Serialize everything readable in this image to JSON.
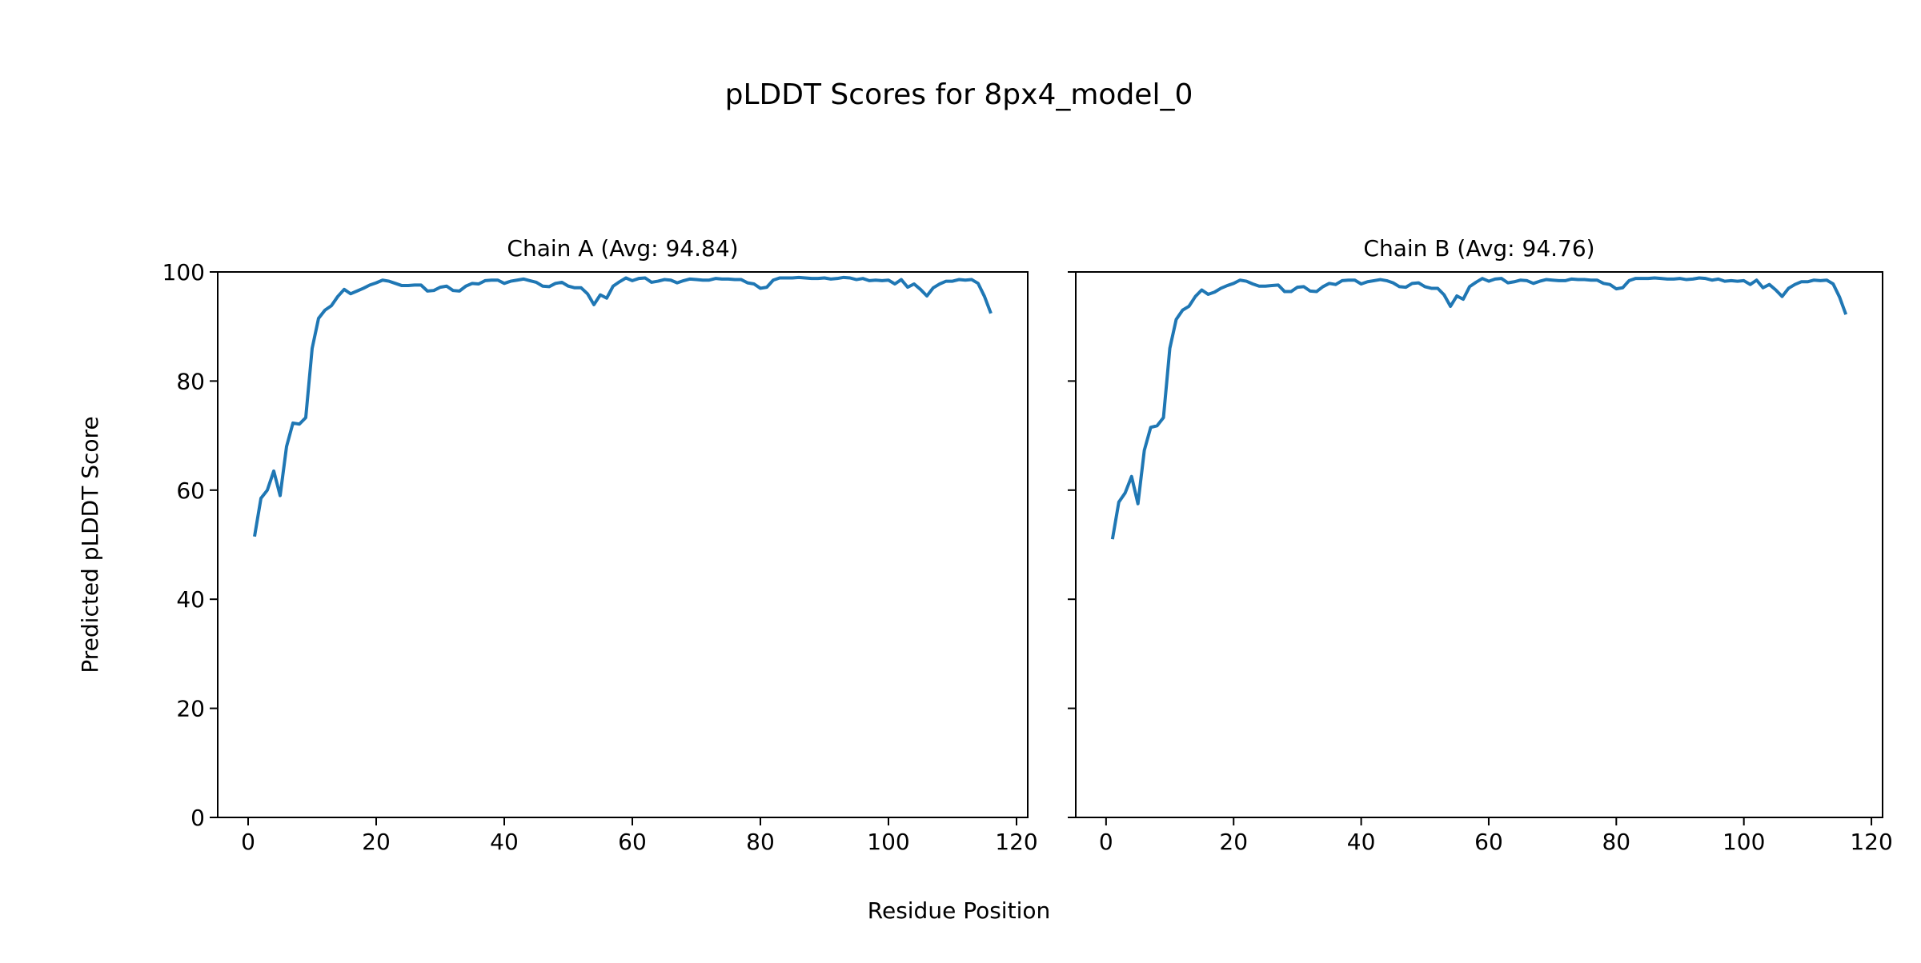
{
  "figure": {
    "title": "pLDDT Scores for 8px4_model_0",
    "xlabel": "Residue Position",
    "ylabel": "Predicted pLDDT Score"
  },
  "colors": {
    "line": "#1f77b4"
  },
  "chart_data": [
    {
      "type": "line",
      "title": "Chain A (Avg: 94.84)",
      "xlim": [
        -4.75,
        121.75
      ],
      "ylim": [
        0,
        100
      ],
      "xticks": [
        0,
        20,
        40,
        60,
        80,
        100,
        120
      ],
      "yticks": [
        0,
        20,
        40,
        60,
        80,
        100
      ],
      "show_ytick_labels": true,
      "grid": false,
      "x_start": 1,
      "values": [
        51.5,
        58.5,
        60,
        63.5,
        59,
        68,
        72.3,
        72.1,
        73.3,
        86,
        91.5,
        93,
        93.8,
        95.5,
        96.8,
        96,
        96.5,
        97,
        97.6,
        98,
        98.5,
        98.3,
        97.9,
        97.5,
        97.5,
        97.6,
        97.6,
        96.5,
        96.6,
        97.2,
        97.4,
        96.6,
        96.5,
        97.4,
        97.9,
        97.8,
        98.4,
        98.5,
        98.5,
        97.9,
        98.3,
        98.5,
        98.7,
        98.4,
        98.1,
        97.4,
        97.3,
        97.9,
        98.1,
        97.4,
        97.1,
        97.1,
        96,
        94,
        95.8,
        95.2,
        97.4,
        98.2,
        98.9,
        98.4,
        98.8,
        98.9,
        98.1,
        98.3,
        98.6,
        98.5,
        98,
        98.4,
        98.7,
        98.6,
        98.5,
        98.5,
        98.8,
        98.7,
        98.7,
        98.6,
        98.6,
        98,
        97.8,
        97,
        97.2,
        98.5,
        98.9,
        98.9,
        98.9,
        99,
        98.9,
        98.8,
        98.8,
        98.9,
        98.7,
        98.8,
        99,
        98.9,
        98.6,
        98.8,
        98.4,
        98.5,
        98.4,
        98.5,
        97.8,
        98.6,
        97.2,
        97.8,
        96.8,
        95.6,
        97.1,
        97.8,
        98.3,
        98.3,
        98.6,
        98.5,
        98.6,
        97.9,
        95.5,
        92.4
      ]
    },
    {
      "type": "line",
      "title": "Chain B (Avg: 94.76)",
      "xlim": [
        -4.75,
        121.75
      ],
      "ylim": [
        0,
        100
      ],
      "xticks": [
        0,
        20,
        40,
        60,
        80,
        100,
        120
      ],
      "yticks": [
        0,
        20,
        40,
        60,
        80,
        100
      ],
      "show_ytick_labels": false,
      "grid": false,
      "x_start": 1,
      "values": [
        51,
        57.8,
        59.5,
        62.5,
        57.5,
        67.3,
        71.5,
        71.8,
        73.3,
        86,
        91.3,
        93,
        93.7,
        95.5,
        96.7,
        95.9,
        96.3,
        97,
        97.5,
        97.9,
        98.5,
        98.3,
        97.8,
        97.4,
        97.4,
        97.5,
        97.6,
        96.4,
        96.4,
        97.2,
        97.3,
        96.5,
        96.4,
        97.3,
        97.9,
        97.7,
        98.4,
        98.5,
        98.5,
        97.8,
        98.2,
        98.4,
        98.6,
        98.4,
        98,
        97.3,
        97.2,
        97.9,
        98,
        97.3,
        97,
        97,
        95.8,
        93.7,
        95.6,
        95,
        97.3,
        98.1,
        98.8,
        98.3,
        98.7,
        98.8,
        98,
        98.2,
        98.5,
        98.4,
        97.9,
        98.3,
        98.6,
        98.5,
        98.4,
        98.4,
        98.7,
        98.6,
        98.6,
        98.5,
        98.5,
        97.9,
        97.7,
        96.9,
        97.1,
        98.4,
        98.8,
        98.8,
        98.8,
        98.9,
        98.8,
        98.7,
        98.7,
        98.8,
        98.6,
        98.7,
        98.9,
        98.8,
        98.5,
        98.7,
        98.3,
        98.4,
        98.3,
        98.4,
        97.7,
        98.5,
        97.1,
        97.7,
        96.7,
        95.5,
        97,
        97.7,
        98.2,
        98.2,
        98.5,
        98.4,
        98.5,
        97.8,
        95.4,
        92.2
      ]
    }
  ]
}
